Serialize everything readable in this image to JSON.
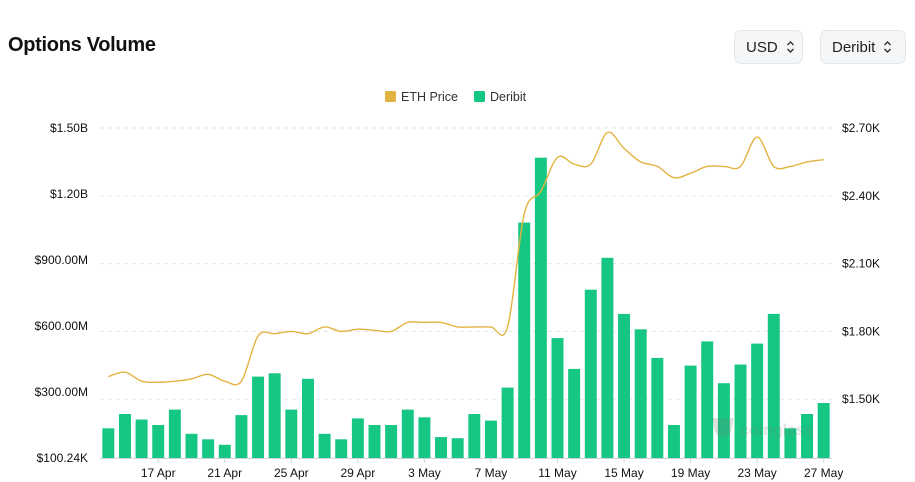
{
  "header": {
    "title": "Options Volume",
    "currency_select": {
      "value": "USD"
    },
    "exchange_select": {
      "value": "Deribit"
    }
  },
  "watermark": "coinglass",
  "colors": {
    "price_line": "#e3b341",
    "bars": "#16c784",
    "grid": "#e5e7eb",
    "text": "#111111"
  },
  "chart_data": {
    "type": "bar",
    "legend": {
      "placement": "top-center",
      "items": [
        {
          "name": "ETH Price",
          "color": "#e3b341"
        },
        {
          "name": "Deribit",
          "color": "#16c784"
        }
      ]
    },
    "x_tick_labels": [
      "17 Apr",
      "21 Apr",
      "25 Apr",
      "29 Apr",
      "3 May",
      "7 May",
      "11 May",
      "15 May",
      "19 May",
      "23 May",
      "27 May"
    ],
    "x_tick_indices": [
      3,
      7,
      11,
      15,
      19,
      23,
      27,
      31,
      35,
      39,
      43
    ],
    "y_left": {
      "tick_labels": [
        "$100.24K",
        "$300.00M",
        "$600.00M",
        "$900.00M",
        "$1.20B",
        "$1.50B"
      ],
      "tick_values": [
        0,
        300,
        600,
        900,
        1200,
        1500
      ],
      "unit": "millions USD",
      "range": [
        0,
        1500
      ]
    },
    "y_right": {
      "tick_labels": [
        "$1.50K",
        "$1.80K",
        "$2.10K",
        "$2.40K",
        "$2.70K"
      ],
      "tick_values": [
        1500,
        1800,
        2100,
        2400,
        2700
      ],
      "unit": "USD",
      "range": [
        1240,
        2700
      ]
    },
    "grid": true,
    "series": [
      {
        "name": "Deribit",
        "type": "bar",
        "axis": "left",
        "values": [
          135,
          200,
          175,
          150,
          220,
          110,
          85,
          60,
          195,
          370,
          385,
          220,
          360,
          110,
          85,
          180,
          150,
          150,
          220,
          185,
          95,
          90,
          200,
          170,
          320,
          1070,
          1365,
          545,
          405,
          765,
          910,
          655,
          585,
          455,
          150,
          420,
          530,
          340,
          425,
          520,
          655,
          135,
          200,
          250
        ]
      },
      {
        "name": "ETH Price",
        "type": "line",
        "axis": "left_unit_right",
        "values": [
          1600,
          1620,
          1580,
          1575,
          1580,
          1590,
          1610,
          1580,
          1580,
          1780,
          1790,
          1800,
          1790,
          1820,
          1800,
          1810,
          1805,
          1800,
          1840,
          1840,
          1840,
          1820,
          1820,
          1820,
          1820,
          2320,
          2420,
          2570,
          2540,
          2540,
          2680,
          2610,
          2550,
          2530,
          2480,
          2500,
          2530,
          2530,
          2530,
          2660,
          2530,
          2530,
          2550,
          2560
        ]
      }
    ]
  }
}
